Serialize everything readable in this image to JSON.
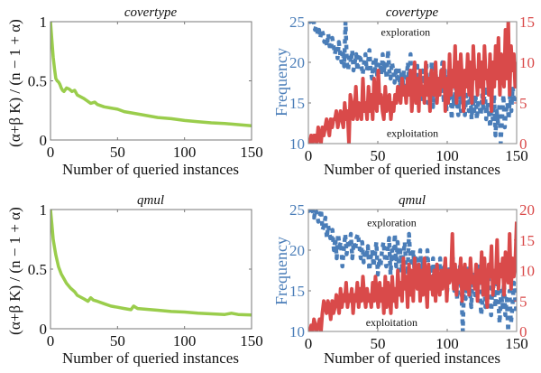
{
  "chart_data": [
    {
      "id": "covertype-ratio",
      "type": "line",
      "title": "covertype",
      "xlabel": "Number of queried instances",
      "ylabel": "(α+β K) / (n − 1 + α)",
      "xlim": [
        0,
        150
      ],
      "ylim": [
        0,
        1
      ],
      "xticks": [
        "0",
        "50",
        "100",
        "150"
      ],
      "yticks": [
        "0",
        "0.5",
        "1"
      ],
      "grid": false,
      "series": [
        {
          "name": "ratio",
          "color": "#9acd4c",
          "x": [
            0,
            1,
            2,
            3,
            4,
            5,
            6,
            7,
            8,
            9,
            10,
            12,
            14,
            16,
            18,
            20,
            25,
            30,
            33,
            35,
            40,
            45,
            50,
            55,
            60,
            70,
            80,
            90,
            100,
            110,
            120,
            130,
            140,
            150
          ],
          "y": [
            1.0,
            0.85,
            0.7,
            0.6,
            0.52,
            0.5,
            0.49,
            0.47,
            0.44,
            0.42,
            0.41,
            0.44,
            0.43,
            0.41,
            0.42,
            0.38,
            0.35,
            0.31,
            0.32,
            0.3,
            0.28,
            0.27,
            0.26,
            0.24,
            0.23,
            0.21,
            0.19,
            0.18,
            0.165,
            0.155,
            0.145,
            0.14,
            0.13,
            0.12
          ]
        }
      ]
    },
    {
      "id": "covertype-frequency",
      "type": "line",
      "title": "covertype",
      "xlabel": "Number of queried instances",
      "ylabel": "Frequency",
      "xlim": [
        0,
        150
      ],
      "ylim": [
        10,
        25
      ],
      "ylim_right": [
        0,
        15
      ],
      "xticks": [
        "0",
        "50",
        "100",
        "150"
      ],
      "yticks": [
        "10",
        "15",
        "20",
        "25"
      ],
      "yticks_right": [
        "0",
        "5",
        "10",
        "15"
      ],
      "annotations": [
        {
          "text": "exploration",
          "x": 70,
          "y": 23.7
        },
        {
          "text": "exploitation",
          "x": 75,
          "y": 11.3
        }
      ],
      "grid": false,
      "series": [
        {
          "name": "exploration",
          "axis": "left",
          "style": "dashed",
          "color": "#4a7db8",
          "y": [
            25,
            25,
            25,
            24.5,
            25,
            24,
            24.5,
            23.5,
            24,
            23,
            24,
            23.5,
            22.5,
            23,
            22,
            23.5,
            22,
            21.5,
            23,
            22,
            21,
            22,
            20.5,
            22.5,
            21,
            20,
            21.5,
            19.5,
            25,
            20,
            19,
            21,
            20,
            21.5,
            19,
            20,
            21,
            19,
            20.5,
            21,
            19.5,
            18.5,
            20,
            21,
            19,
            20,
            21.5,
            19,
            18,
            20,
            19,
            20.5,
            18,
            19.5,
            20,
            18.5,
            21,
            19,
            20,
            18,
            21.5,
            19,
            18,
            20,
            19,
            17.5,
            19,
            18,
            19.5,
            17,
            18.5,
            17,
            19,
            16.5,
            18,
            20,
            17,
            21,
            16,
            19,
            15.5,
            17,
            20,
            16,
            18,
            15,
            19,
            16.5,
            17,
            20,
            15,
            18,
            16.5,
            20,
            14.5,
            17,
            19,
            15.5,
            18,
            16,
            17,
            20,
            15,
            19,
            14,
            17,
            15.5,
            18,
            13,
            16,
            14.5,
            17,
            15,
            13.5,
            16.5,
            14,
            17,
            15,
            13.5,
            16,
            15,
            14,
            17,
            13,
            15.5,
            14,
            16,
            13,
            15,
            14.5,
            13.5,
            16,
            14,
            17,
            13,
            15,
            14,
            12,
            15,
            13,
            16,
            11,
            14,
            12.5,
            15,
            10,
            13,
            16,
            12,
            14,
            15,
            13,
            16,
            14,
            17,
            15,
            16,
            15.5
          ]
        },
        {
          "name": "exploitation",
          "axis": "right",
          "style": "solid",
          "color": "#d94a4a",
          "y": [
            0,
            0,
            1,
            0,
            1,
            1,
            0,
            2,
            1,
            0,
            2,
            1,
            2,
            3,
            2,
            1,
            3,
            2,
            3,
            3,
            4,
            2,
            3,
            4,
            3,
            2,
            5,
            3,
            4,
            0,
            6,
            5,
            3,
            4,
            7,
            3,
            5,
            4,
            3,
            8,
            4,
            5,
            3,
            7,
            4,
            6,
            3,
            8,
            5,
            4,
            9,
            5,
            6,
            4,
            3,
            7,
            4,
            5,
            6,
            3,
            5,
            4,
            6,
            5,
            7,
            6,
            5,
            8,
            6,
            7,
            5,
            8,
            6,
            9,
            4,
            7,
            10,
            5,
            8,
            4,
            9,
            6,
            7,
            5,
            10,
            6,
            8,
            4,
            9,
            7,
            6,
            10,
            5,
            8,
            6,
            9,
            7,
            10,
            4,
            8,
            5,
            11,
            6,
            9,
            7,
            12,
            5,
            10,
            6,
            11,
            8,
            4,
            9,
            7,
            11,
            6,
            10,
            5,
            12,
            8,
            9,
            6,
            11,
            7,
            10,
            5,
            12,
            8,
            9,
            6,
            11,
            4,
            10,
            7,
            12,
            8,
            13,
            6,
            11,
            9,
            7,
            14,
            8,
            15,
            6,
            12,
            9,
            11,
            7,
            10
          ]
        }
      ]
    },
    {
      "id": "qmul-ratio",
      "type": "line",
      "title": "qmul",
      "xlabel": "Number of queried instances",
      "ylabel": "(α+β K) / (n − 1 + α)",
      "xlim": [
        0,
        150
      ],
      "ylim": [
        0,
        1
      ],
      "xticks": [
        "0",
        "50",
        "100",
        "150"
      ],
      "yticks": [
        "0",
        "0.5",
        "1"
      ],
      "grid": false,
      "series": [
        {
          "name": "ratio",
          "color": "#9acd4c",
          "x": [
            0,
            1,
            2,
            3,
            4,
            5,
            6,
            8,
            10,
            12,
            15,
            18,
            20,
            25,
            28,
            30,
            32,
            35,
            40,
            45,
            50,
            55,
            60,
            62,
            65,
            70,
            80,
            90,
            100,
            110,
            120,
            130,
            135,
            140,
            150
          ],
          "y": [
            1.0,
            0.88,
            0.75,
            0.68,
            0.62,
            0.57,
            0.52,
            0.46,
            0.42,
            0.38,
            0.34,
            0.31,
            0.28,
            0.25,
            0.23,
            0.26,
            0.24,
            0.23,
            0.21,
            0.19,
            0.18,
            0.17,
            0.16,
            0.19,
            0.17,
            0.165,
            0.155,
            0.145,
            0.14,
            0.13,
            0.125,
            0.12,
            0.13,
            0.12,
            0.115
          ]
        }
      ]
    },
    {
      "id": "qmul-frequency",
      "type": "line",
      "title": "qmul",
      "xlabel": "Number of queried instances",
      "ylabel": "Frequency",
      "xlim": [
        0,
        150
      ],
      "ylim": [
        10,
        25
      ],
      "ylim_right": [
        0,
        20
      ],
      "xticks": [
        "0",
        "50",
        "100",
        "150"
      ],
      "yticks": [
        "10",
        "15",
        "20",
        "25"
      ],
      "yticks_right": [
        "0",
        "5",
        "10",
        "15",
        "20"
      ],
      "annotations": [
        {
          "text": "exploration",
          "x": 60,
          "y": 23.4
        },
        {
          "text": "exploitation",
          "x": 60,
          "y": 11.1
        }
      ],
      "grid": false,
      "series": [
        {
          "name": "exploration",
          "axis": "left",
          "style": "dashed",
          "color": "#4a7db8",
          "y": [
            25,
            25,
            24.5,
            25,
            24,
            25,
            24.5,
            23.5,
            24,
            25,
            22.5,
            23,
            24,
            21.5,
            23,
            22,
            21,
            22.5,
            20,
            21.5,
            19,
            22,
            20.5,
            21,
            18,
            20,
            22,
            19.5,
            21,
            20.5,
            22,
            19,
            21,
            20,
            21.5,
            22,
            20.5,
            19,
            21,
            18.5,
            20,
            19,
            20.5,
            17.5,
            19,
            20,
            18,
            19.5,
            21,
            17,
            19,
            18,
            20,
            21,
            19,
            18,
            20,
            21.5,
            17,
            20,
            19,
            22,
            18,
            21,
            17,
            20,
            18,
            19.5,
            21,
            18,
            17,
            22,
            19,
            18,
            20,
            17,
            19,
            16,
            18,
            20,
            17,
            19,
            16,
            18,
            20,
            17,
            18,
            16,
            19,
            15,
            18,
            17,
            16,
            19,
            15,
            17,
            18,
            16,
            15,
            18,
            17,
            16,
            19,
            15,
            17,
            14,
            16,
            18,
            15,
            10,
            17,
            14,
            16,
            18,
            15,
            13,
            17,
            15,
            14,
            16,
            18,
            15,
            12,
            14,
            16,
            13,
            15,
            17,
            14,
            12,
            16,
            15,
            13,
            17,
            14,
            11,
            15,
            13,
            16,
            12,
            14,
            10,
            15,
            11,
            13,
            16,
            14,
            12
          ]
        },
        {
          "name": "exploitation",
          "axis": "right",
          "style": "solid",
          "color": "#d94a4a",
          "y": [
            0,
            0,
            1,
            0,
            2,
            1,
            0,
            1,
            2,
            0,
            3,
            5,
            4,
            3,
            5,
            4,
            2,
            5,
            3,
            4,
            6,
            5,
            3,
            7,
            4,
            6,
            5,
            8,
            4,
            6,
            5,
            7,
            3,
            6,
            5,
            8,
            4,
            7,
            5,
            9,
            6,
            4,
            7,
            5,
            6,
            4,
            8,
            5,
            9,
            6,
            4,
            8,
            5,
            7,
            3,
            9,
            4,
            8,
            6,
            3,
            9,
            5,
            7,
            4,
            10,
            6,
            8,
            5,
            12,
            7,
            9,
            4,
            11,
            6,
            10,
            5,
            12,
            8,
            7,
            11,
            5,
            10,
            6,
            12,
            8,
            4,
            11,
            7,
            9,
            6,
            10,
            5,
            11,
            8,
            6,
            10,
            7,
            9,
            12,
            5,
            10,
            8,
            9,
            16,
            7,
            11,
            6,
            10,
            8,
            12,
            5,
            9,
            11,
            7,
            10,
            6,
            12,
            8,
            9,
            7,
            11,
            5,
            10,
            8,
            13,
            6,
            12,
            7,
            4,
            11,
            9,
            14,
            6,
            10,
            8,
            15,
            7,
            11,
            9,
            12,
            6,
            13,
            10,
            8,
            16,
            7,
            12,
            9,
            11,
            18
          ]
        }
      ]
    }
  ]
}
